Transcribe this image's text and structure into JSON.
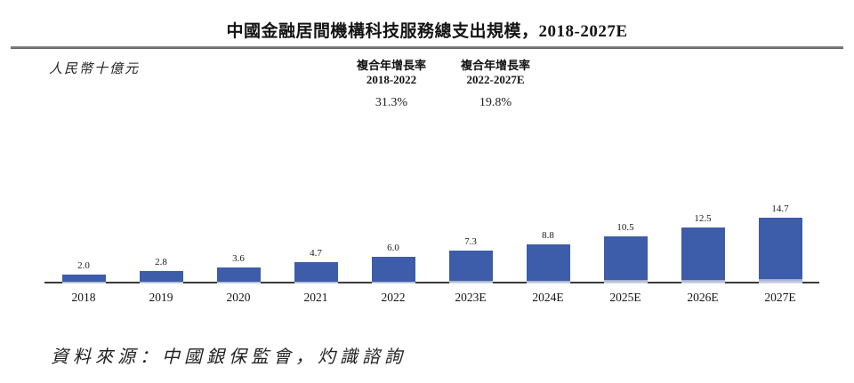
{
  "title": "中國金融居間機構科技服務總支出規模，2018-2027E",
  "unit_label": "人民幣十億元",
  "cagr_columns": [
    {
      "label_line1": "複合年增長率",
      "label_line2": "2018-2022",
      "value": "31.3%"
    },
    {
      "label_line1": "複合年增長率",
      "label_line2": "2022-2027E",
      "value": "19.8%"
    }
  ],
  "source": "資料來源：中國銀保監會，灼識諮詢",
  "colors": {
    "bar": "#3d5ca9",
    "bar_base_top": "#9aa9c7",
    "bar_base_bottom": "#d9dde9",
    "axis": "#3a3a3c",
    "title_rule": "#6b6b6b"
  },
  "chart_data": {
    "type": "bar",
    "title": "中國金融居間機構科技服務總支出規模，2018-2027E",
    "ylabel": "人民幣十億元",
    "categories": [
      "2018",
      "2019",
      "2020",
      "2021",
      "2022",
      "2023E",
      "2024E",
      "2025E",
      "2026E",
      "2027E"
    ],
    "values": [
      2.0,
      2.8,
      3.6,
      4.7,
      6.0,
      7.3,
      8.8,
      10.5,
      12.5,
      14.7
    ],
    "data_labels": [
      "2.0",
      "2.8",
      "3.6",
      "4.7",
      "6.0",
      "7.3",
      "8.8",
      "10.5",
      "12.5",
      "14.7"
    ],
    "ylim": [
      0,
      16
    ],
    "grid": false,
    "legend": false,
    "annotations": [
      {
        "text": "複合年增長率 2018-2022: 31.3%"
      },
      {
        "text": "複合年增長率 2022-2027E: 19.8%"
      }
    ]
  }
}
